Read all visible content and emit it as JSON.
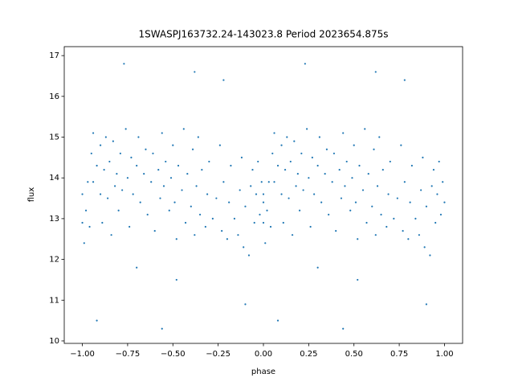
{
  "chart_data": {
    "type": "scatter",
    "title": "1SWASPJ163732.24-143023.8 Period 2023654.875s",
    "x_label": "phase",
    "y_label": "flux",
    "color": "#1f77b4",
    "xlim": [
      -1.1,
      1.1
    ],
    "ylim": [
      9.94,
      17.22
    ],
    "xticks": [
      {
        "value": -1,
        "label": "−1.00"
      },
      {
        "value": -0.75,
        "label": "−0.75"
      },
      {
        "value": -0.5,
        "label": "−0.50"
      },
      {
        "value": -0.25,
        "label": "−0.25"
      },
      {
        "value": 0,
        "label": "0.00"
      },
      {
        "value": 0.25,
        "label": "0.25"
      },
      {
        "value": 0.5,
        "label": "0.50"
      },
      {
        "value": 0.75,
        "label": "0.75"
      },
      {
        "value": 1,
        "label": "1.00"
      }
    ],
    "yticks": [
      10,
      11,
      12,
      13,
      14,
      15,
      16,
      17
    ],
    "x": [
      0.0,
      0.0,
      0.01,
      0.02,
      0.03,
      0.04,
      0.05,
      0.06,
      0.06,
      0.08,
      0.1,
      0.1,
      0.11,
      0.12,
      0.13,
      0.14,
      0.15,
      0.16,
      0.17,
      0.18,
      0.19,
      0.2,
      0.21,
      0.22,
      0.24,
      0.25,
      0.26,
      0.27,
      0.28,
      0.3,
      0.31,
      0.32,
      0.34,
      0.35,
      0.36,
      0.38,
      0.39,
      0.4,
      0.42,
      0.43,
      0.44,
      0.45,
      0.46,
      0.48,
      0.49,
      0.5,
      0.51,
      0.52,
      0.53,
      0.55,
      0.56,
      0.57,
      0.58,
      0.6,
      0.61,
      0.62,
      0.63,
      0.64,
      0.65,
      0.66,
      0.68,
      0.69,
      0.7,
      0.72,
      0.74,
      0.76,
      0.77,
      0.78,
      0.8,
      0.81,
      0.82,
      0.84,
      0.86,
      0.87,
      0.88,
      0.89,
      0.9,
      0.92,
      0.93,
      0.94,
      0.95,
      0.96,
      0.97,
      0.98,
      0.99,
      1.0,
      -1.0,
      -1.0,
      -0.99,
      -0.98,
      -0.97,
      -0.96,
      -0.95,
      -0.94,
      -0.94,
      -0.92,
      -0.9,
      -0.9,
      -0.89,
      -0.88,
      -0.87,
      -0.86,
      -0.85,
      -0.84,
      -0.83,
      -0.82,
      -0.81,
      -0.8,
      -0.79,
      -0.78,
      -0.76,
      -0.75,
      -0.74,
      -0.73,
      -0.72,
      -0.7,
      -0.69,
      -0.68,
      -0.66,
      -0.65,
      -0.64,
      -0.62,
      -0.61,
      -0.6,
      -0.58,
      -0.57,
      -0.56,
      -0.55,
      -0.54,
      -0.52,
      -0.51,
      -0.5,
      -0.49,
      -0.48,
      -0.47,
      -0.45,
      -0.44,
      -0.43,
      -0.42,
      -0.4,
      -0.39,
      -0.38,
      -0.37,
      -0.36,
      -0.35,
      -0.34,
      -0.32,
      -0.31,
      -0.3,
      -0.28,
      -0.26,
      -0.24,
      -0.23,
      -0.22,
      -0.2,
      -0.19,
      -0.18,
      -0.16,
      -0.14,
      -0.13,
      -0.12,
      -0.11,
      -0.1,
      -0.08,
      -0.07,
      -0.06,
      -0.05,
      -0.04,
      -0.03,
      -0.02,
      -0.01,
      0.0,
      0.23,
      0.62,
      0.78,
      0.08,
      0.44,
      0.52,
      0.9,
      0.3,
      -0.77,
      -0.38,
      -0.22,
      -0.92,
      -0.56,
      -0.48,
      -0.1,
      -0.7
    ],
    "y": [
      12.9,
      13.6,
      12.4,
      13.2,
      13.9,
      12.8,
      14.6,
      15.1,
      13.9,
      14.3,
      14.8,
      13.6,
      12.9,
      14.2,
      15.0,
      13.5,
      14.4,
      12.6,
      14.9,
      13.8,
      14.1,
      13.2,
      14.6,
      13.7,
      15.2,
      14.0,
      12.8,
      14.5,
      13.6,
      14.3,
      15.0,
      13.4,
      14.1,
      14.7,
      13.1,
      13.9,
      14.6,
      12.7,
      14.2,
      13.5,
      15.1,
      13.8,
      14.4,
      13.2,
      14.0,
      14.8,
      13.4,
      12.5,
      14.3,
      13.7,
      15.2,
      12.9,
      14.1,
      13.3,
      14.7,
      12.6,
      13.8,
      15.0,
      13.1,
      14.2,
      12.8,
      13.6,
      14.4,
      13.0,
      13.5,
      14.8,
      12.7,
      13.9,
      12.5,
      13.4,
      14.3,
      13.0,
      12.6,
      13.7,
      14.5,
      12.3,
      13.3,
      12.1,
      13.8,
      14.2,
      12.9,
      13.6,
      14.4,
      13.1,
      13.9,
      13.4,
      12.9,
      13.6,
      12.4,
      13.2,
      13.9,
      12.8,
      14.6,
      15.1,
      13.9,
      14.3,
      14.8,
      13.6,
      12.9,
      14.2,
      15.0,
      13.5,
      14.4,
      12.6,
      14.9,
      13.8,
      14.1,
      13.2,
      14.6,
      13.7,
      15.2,
      14.0,
      12.8,
      14.5,
      13.6,
      14.3,
      15.0,
      13.4,
      14.1,
      14.7,
      13.1,
      13.9,
      14.6,
      12.7,
      14.2,
      13.5,
      15.1,
      13.8,
      14.4,
      13.2,
      14.0,
      14.8,
      13.4,
      12.5,
      14.3,
      13.7,
      15.2,
      12.9,
      14.1,
      13.3,
      14.7,
      12.6,
      13.8,
      15.0,
      13.1,
      14.2,
      12.8,
      13.6,
      14.4,
      13.0,
      13.5,
      14.8,
      12.7,
      13.9,
      12.5,
      13.4,
      14.3,
      13.0,
      12.6,
      13.7,
      14.5,
      12.3,
      13.3,
      12.1,
      13.8,
      14.2,
      12.9,
      13.6,
      14.4,
      13.1,
      13.9,
      13.4,
      16.8,
      16.6,
      16.4,
      10.5,
      10.3,
      11.5,
      10.9,
      11.8,
      16.8,
      16.6,
      16.4,
      10.5,
      10.3,
      11.5,
      10.9,
      11.8
    ]
  }
}
